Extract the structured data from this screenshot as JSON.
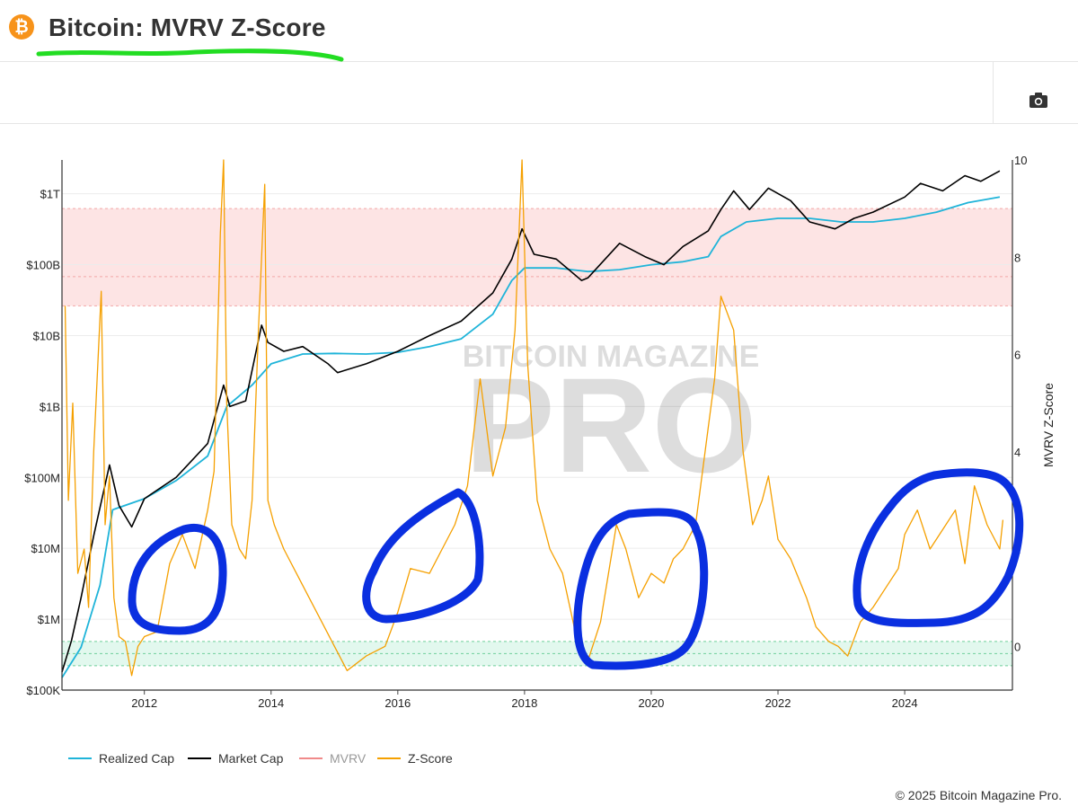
{
  "header": {
    "logo_glyph": "₿",
    "title": "Bitcoin: MVRV Z-Score"
  },
  "toolbar": {
    "camera_icon": "camera-icon"
  },
  "colors": {
    "realized_cap": "#1fb4d9",
    "market_cap": "#000000",
    "mvrv": "#f08a8a",
    "zscore": "#f5a000",
    "red_band": "#fde4e4",
    "green_band": "#e2f8ee",
    "annotation_green": "#22dd22",
    "annotation_blue": "#0a2fe0"
  },
  "watermark": {
    "line1": "BITCOIN MAGAZINE",
    "line2": "PRO"
  },
  "footer": {
    "copyright": "© 2025 Bitcoin Magazine Pro."
  },
  "chart_data": {
    "type": "line",
    "title": "Bitcoin: MVRV Z-Score",
    "y_left_scale": "log",
    "y_left_ticks": [
      "$100K",
      "$1M",
      "$10M",
      "$100M",
      "$1B",
      "$10B",
      "$100B",
      "$1T"
    ],
    "y_left_range": [
      100000,
      3000000000000
    ],
    "y_right_label": "MVRV Z-Score",
    "y_right_ticks": [
      "0",
      "2",
      "4",
      "6",
      "8",
      "10"
    ],
    "y_right_range": [
      -0.9,
      10
    ],
    "x_ticks": [
      "2012",
      "2014",
      "2016",
      "2018",
      "2020",
      "2022",
      "2024"
    ],
    "x_range": [
      2010.7,
      2025.7
    ],
    "bands": {
      "red_zscore": [
        7.0,
        9.0
      ],
      "green_zscore": [
        -0.4,
        0.1
      ]
    },
    "legend": [
      "Realized Cap",
      "Market Cap",
      "MVRV",
      "Z-Score"
    ],
    "legend_placement": "bottom-left",
    "series": [
      {
        "name": "Realized Cap",
        "x": [
          2010.7,
          2011.0,
          2011.3,
          2011.5,
          2012.0,
          2012.5,
          2013.0,
          2013.3,
          2013.7,
          2014.0,
          2014.5,
          2015.0,
          2015.5,
          2016.0,
          2016.5,
          2017.0,
          2017.5,
          2017.8,
          2018.0,
          2018.5,
          2019.0,
          2019.5,
          2020.0,
          2020.5,
          2020.9,
          2021.1,
          2021.5,
          2022.0,
          2022.5,
          2023.0,
          2023.5,
          2024.0,
          2024.5,
          2025.0,
          2025.5
        ],
        "y": [
          150000.0,
          400000.0,
          3000000.0,
          35000000.0,
          50000000.0,
          90000000.0,
          200000000.0,
          1000000000.0,
          2000000000.0,
          4000000000.0,
          5500000000.0,
          5600000000.0,
          5500000000.0,
          5800000000.0,
          7000000000.0,
          9000000000.0,
          20000000000.0,
          60000000000.0,
          90000000000.0,
          90000000000.0,
          80000000000.0,
          85000000000.0,
          100000000000.0,
          110000000000.0,
          130000000000.0,
          250000000000.0,
          400000000000.0,
          450000000000.0,
          450000000000.0,
          400000000000.0,
          400000000000.0,
          450000000000.0,
          550000000000.0,
          750000000000.0,
          900000000000.0
        ]
      },
      {
        "name": "Market Cap",
        "x": [
          2010.7,
          2010.85,
          2011.0,
          2011.2,
          2011.45,
          2011.6,
          2011.8,
          2012.0,
          2012.5,
          2013.0,
          2013.25,
          2013.35,
          2013.6,
          2013.85,
          2013.95,
          2014.2,
          2014.5,
          2014.9,
          2015.05,
          2015.5,
          2016.0,
          2016.5,
          2017.0,
          2017.5,
          2017.8,
          2017.96,
          2018.15,
          2018.5,
          2018.9,
          2019.0,
          2019.5,
          2019.9,
          2020.2,
          2020.5,
          2020.9,
          2021.1,
          2021.3,
          2021.55,
          2021.85,
          2022.2,
          2022.5,
          2022.9,
          2023.2,
          2023.5,
          2024.0,
          2024.25,
          2024.6,
          2024.95,
          2025.2,
          2025.5
        ],
        "y": [
          180000.0,
          500000.0,
          2000000.0,
          15000000.0,
          150000000.0,
          40000000.0,
          20000000.0,
          50000000.0,
          100000000.0,
          300000000.0,
          2000000000.0,
          1000000000.0,
          1200000000.0,
          14000000000.0,
          8000000000.0,
          6000000000.0,
          7000000000.0,
          4000000000.0,
          3000000000.0,
          4000000000.0,
          6000000000.0,
          10000000000.0,
          16000000000.0,
          40000000000.0,
          120000000000.0,
          320000000000.0,
          140000000000.0,
          120000000000.0,
          60000000000.0,
          65000000000.0,
          200000000000.0,
          130000000000.0,
          100000000000.0,
          180000000000.0,
          300000000000.0,
          600000000000.0,
          1100000000000.0,
          600000000000.0,
          1200000000000.0,
          800000000000.0,
          400000000000.0,
          320000000000.0,
          450000000000.0,
          550000000000.0,
          900000000000.0,
          1400000000000.0,
          1100000000000.0,
          1800000000000.0,
          1500000000000.0,
          2100000000000.0
        ]
      },
      {
        "name": "Z-Score",
        "x": [
          2010.75,
          2010.8,
          2010.87,
          2010.95,
          2011.05,
          2011.12,
          2011.2,
          2011.32,
          2011.38,
          2011.45,
          2011.52,
          2011.6,
          2011.7,
          2011.8,
          2011.9,
          2012.0,
          2012.2,
          2012.4,
          2012.6,
          2012.8,
          2013.0,
          2013.1,
          2013.2,
          2013.25,
          2013.3,
          2013.38,
          2013.5,
          2013.6,
          2013.7,
          2013.8,
          2013.9,
          2013.95,
          2014.05,
          2014.2,
          2014.4,
          2014.6,
          2014.8,
          2015.0,
          2015.2,
          2015.5,
          2015.8,
          2016.0,
          2016.2,
          2016.5,
          2016.7,
          2016.9,
          2017.1,
          2017.3,
          2017.5,
          2017.7,
          2017.85,
          2017.96,
          2018.05,
          2018.2,
          2018.4,
          2018.6,
          2018.8,
          2019.0,
          2019.2,
          2019.45,
          2019.6,
          2019.8,
          2020.0,
          2020.2,
          2020.35,
          2020.5,
          2020.7,
          2020.9,
          2021.0,
          2021.1,
          2021.3,
          2021.45,
          2021.6,
          2021.75,
          2021.85,
          2022.0,
          2022.2,
          2022.45,
          2022.6,
          2022.8,
          2022.95,
          2023.1,
          2023.3,
          2023.5,
          2023.7,
          2023.9,
          2024.0,
          2024.2,
          2024.4,
          2024.6,
          2024.8,
          2024.95,
          2025.1,
          2025.3,
          2025.5,
          2025.55
        ],
        "y": [
          7.0,
          3.0,
          5.0,
          1.5,
          2.0,
          0.8,
          4.0,
          7.3,
          2.5,
          3.5,
          1.0,
          0.2,
          0.1,
          -0.6,
          0.0,
          0.2,
          0.3,
          1.7,
          2.3,
          1.6,
          2.8,
          3.6,
          8.5,
          10.0,
          5.0,
          2.5,
          2.0,
          1.8,
          3.0,
          6.5,
          9.5,
          3.0,
          2.5,
          2.0,
          1.5,
          1.0,
          0.5,
          0.0,
          -0.5,
          -0.2,
          0.0,
          0.7,
          1.6,
          1.5,
          2.0,
          2.5,
          3.3,
          5.5,
          3.5,
          4.5,
          6.5,
          10.0,
          5.8,
          3.0,
          2.0,
          1.5,
          0.3,
          -0.3,
          0.5,
          2.5,
          2.0,
          1.0,
          1.5,
          1.3,
          1.8,
          2.0,
          2.5,
          4.5,
          5.5,
          7.2,
          6.5,
          4.0,
          2.5,
          3.0,
          3.5,
          2.2,
          1.8,
          1.0,
          0.4,
          0.1,
          0.0,
          -0.2,
          0.5,
          0.8,
          1.2,
          1.6,
          2.3,
          2.8,
          2.0,
          2.4,
          2.8,
          1.7,
          3.3,
          2.5,
          2.0,
          2.6
        ]
      }
    ]
  }
}
